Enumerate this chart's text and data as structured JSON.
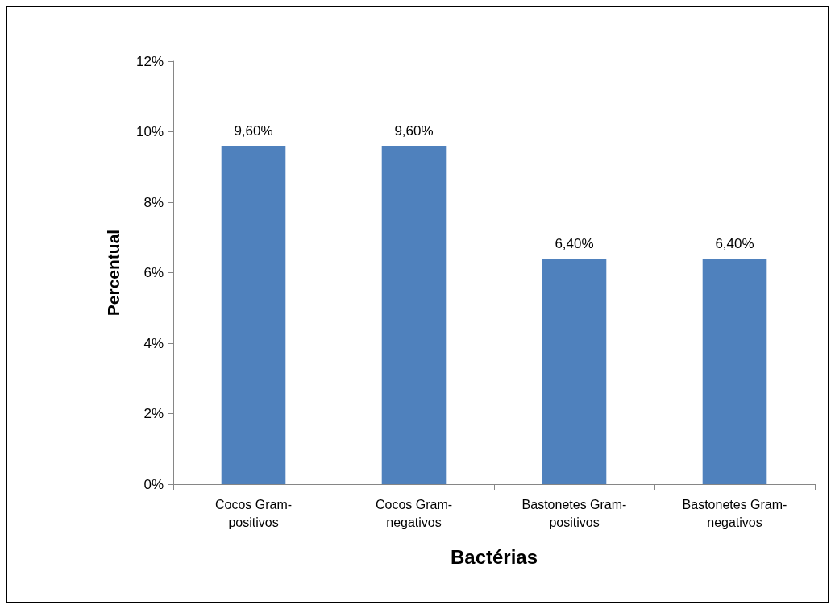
{
  "chart_data": {
    "type": "bar",
    "xlabel": "Bactérias",
    "ylabel": "Percentual",
    "categories": [
      "Cocos Gram-positivos",
      "Cocos Gram-negativos",
      "Bastonetes Gram-positivos",
      "Bastonetes Gram-negativos"
    ],
    "values": [
      9.6,
      9.6,
      6.4,
      6.4
    ],
    "value_labels": [
      "9,60%",
      "9,60%",
      "6,40%",
      "6,40%"
    ],
    "color": "#4f81bd",
    "ylim": [
      0,
      12
    ],
    "yticks": [
      {
        "value": 0,
        "label": "0%"
      },
      {
        "value": 2,
        "label": "2%"
      },
      {
        "value": 4,
        "label": "4%"
      },
      {
        "value": 6,
        "label": "6%"
      },
      {
        "value": 8,
        "label": "8%"
      },
      {
        "value": 10,
        "label": "10%"
      },
      {
        "value": 12,
        "label": "12%"
      }
    ],
    "grid": false
  }
}
